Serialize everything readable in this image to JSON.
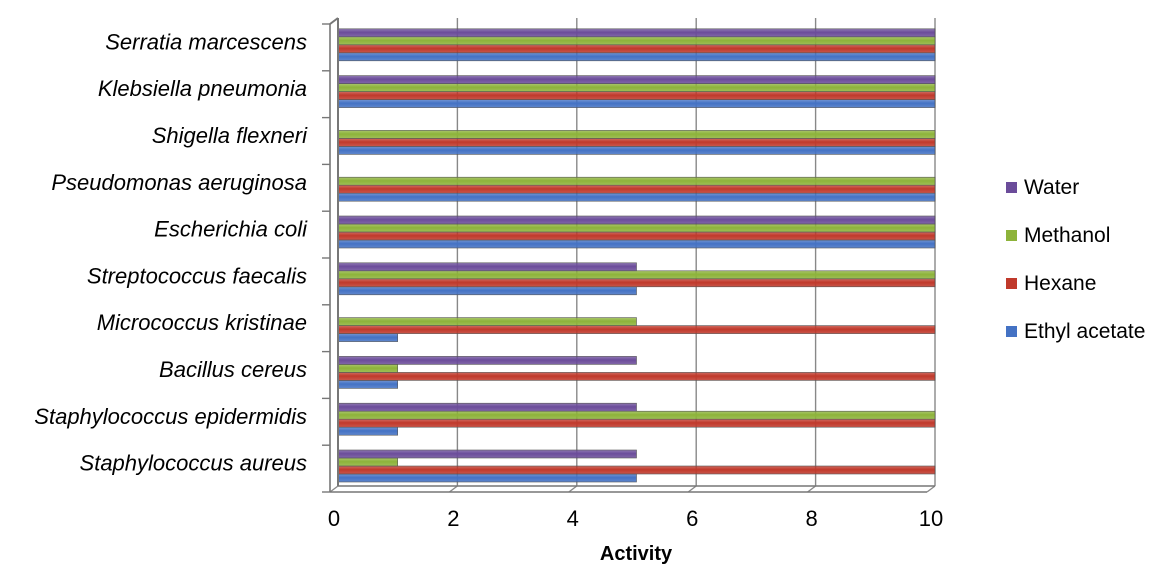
{
  "chart_data": {
    "type": "bar",
    "orientation": "horizontal",
    "title": "",
    "xlabel": "Activity",
    "ylabel": "",
    "xlim": [
      0,
      10
    ],
    "xticks": [
      "0",
      "2",
      "4",
      "6",
      "8",
      "10"
    ],
    "grid": true,
    "legend_position": "right",
    "categories": [
      "Staphylococcus aureus",
      "Staphylococcus epidermidis",
      "Bacillus cereus",
      "Micrococcus kristinae",
      "Streptococcus faecalis",
      "Escherichia coli",
      "Pseudomonas aeruginosa",
      "Shigella flexneri",
      "Klebsiella pneumonia",
      "Serratia marcescens"
    ],
    "series": [
      {
        "name": "Ethyl acetate",
        "color": "#4472c4",
        "values": [
          5,
          1,
          1,
          1,
          5,
          10,
          10,
          10,
          10,
          10
        ]
      },
      {
        "name": "Hexane",
        "color": "#c0392b",
        "values": [
          10,
          10,
          10,
          10,
          10,
          10,
          10,
          10,
          10,
          10
        ]
      },
      {
        "name": "Methanol",
        "color": "#8db33a",
        "values": [
          1,
          10,
          1,
          5,
          10,
          10,
          10,
          10,
          10,
          10
        ]
      },
      {
        "name": "Water",
        "color": "#6b4c9a",
        "values": [
          5,
          5,
          5,
          0,
          5,
          10,
          0,
          0,
          10,
          10
        ]
      }
    ]
  }
}
